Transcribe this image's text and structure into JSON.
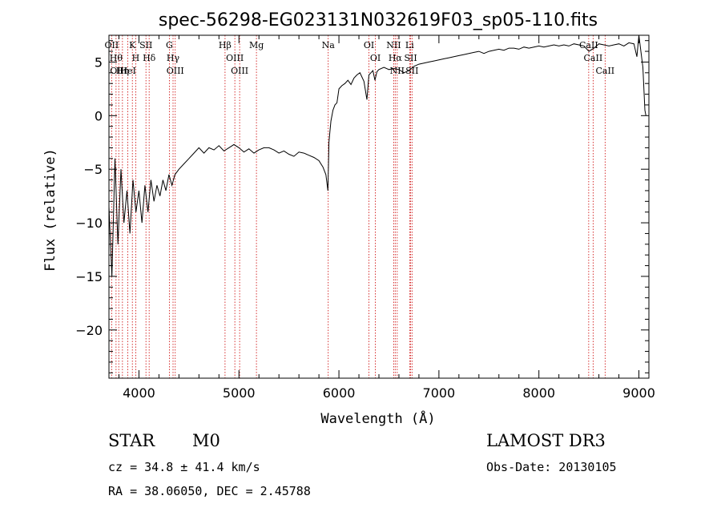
{
  "chart_data": {
    "type": "line",
    "title": "spec-56298-EG023131N032619F03_sp05-110.fits",
    "xlabel": "Wavelength (Å)",
    "ylabel": "Flux (relative)",
    "xlim": [
      3700,
      9100
    ],
    "ylim": [
      -24.5,
      7.5
    ],
    "xticks": [
      4000,
      5000,
      6000,
      7000,
      8000,
      9000
    ],
    "yticks": [
      5,
      0,
      -5,
      -10,
      -15,
      -20
    ],
    "ytick_labels": [
      "5",
      "0",
      "−5",
      "−10",
      "−15",
      "−20"
    ],
    "grid": false,
    "line_color": "#000000",
    "marker_color": "#cc0000",
    "series": [
      {
        "x": [
          3700,
          3730,
          3760,
          3790,
          3820,
          3850,
          3880,
          3910,
          3940,
          3970,
          4000,
          4030,
          4060,
          4090,
          4120,
          4150,
          4180,
          4210,
          4240,
          4270,
          4300,
          4330,
          4360,
          4400,
          4450,
          4500,
          4550,
          4600,
          4650,
          4700,
          4750,
          4800,
          4850,
          4900,
          4950,
          5000,
          5050,
          5100,
          5150,
          5200,
          5250,
          5300,
          5350,
          5400,
          5450,
          5500,
          5550,
          5600,
          5650,
          5700,
          5750,
          5800,
          5840,
          5870,
          5890,
          5900,
          5910,
          5920,
          5940,
          5960,
          5980,
          6000,
          6030,
          6060,
          6090,
          6120,
          6150,
          6180,
          6210,
          6250,
          6280,
          6300,
          6320,
          6340,
          6360,
          6380,
          6400,
          6450,
          6500,
          6550,
          6600,
          6650,
          6700,
          6750,
          6800,
          6850,
          6900,
          6950,
          7000,
          7050,
          7100,
          7150,
          7200,
          7250,
          7300,
          7350,
          7400,
          7450,
          7500,
          7550,
          7600,
          7650,
          7700,
          7750,
          7800,
          7850,
          7900,
          7950,
          8000,
          8050,
          8100,
          8150,
          8200,
          8250,
          8300,
          8350,
          8400,
          8450,
          8500,
          8550,
          8600,
          8650,
          8700,
          8750,
          8800,
          8850,
          8900,
          8950,
          8980,
          9000,
          9020,
          9040,
          9060,
          9070
        ],
        "y": [
          -8.5,
          -15,
          -4,
          -12,
          -5,
          -10,
          -7,
          -11,
          -6,
          -9,
          -7,
          -10,
          -6.5,
          -9,
          -6,
          -8,
          -6.5,
          -7.5,
          -6,
          -7,
          -5.5,
          -6.5,
          -5.5,
          -5,
          -4.5,
          -4,
          -3.5,
          -3,
          -3.5,
          -3,
          -3.2,
          -2.8,
          -3.3,
          -3,
          -2.7,
          -3,
          -3.4,
          -3.1,
          -3.5,
          -3.2,
          -3,
          -3,
          -3.2,
          -3.5,
          -3.3,
          -3.6,
          -3.8,
          -3.4,
          -3.5,
          -3.7,
          -3.9,
          -4.2,
          -4.8,
          -5.5,
          -7,
          -2.5,
          -1.5,
          -0.5,
          0.5,
          1,
          1.2,
          2.5,
          2.8,
          3,
          3.3,
          2.9,
          3.5,
          3.8,
          4,
          3.2,
          1.5,
          3.8,
          4,
          4.2,
          3.3,
          4.1,
          4.3,
          4.5,
          4.3,
          4.4,
          4.3,
          4,
          4.2,
          4.6,
          4.8,
          4.9,
          5,
          5.1,
          5.2,
          5.3,
          5.4,
          5.5,
          5.6,
          5.7,
          5.8,
          5.9,
          6,
          5.8,
          6,
          6.1,
          6.2,
          6.1,
          6.3,
          6.3,
          6.2,
          6.4,
          6.3,
          6.4,
          6.5,
          6.4,
          6.5,
          6.6,
          6.5,
          6.6,
          6.5,
          6.7,
          6.6,
          6.5,
          6,
          6.3,
          6.7,
          6.6,
          6.5,
          6.6,
          6.7,
          6.5,
          6.8,
          6.7,
          5.5,
          7.5,
          6,
          4.5,
          0.5,
          0
        ]
      }
    ],
    "spectral_lines": [
      {
        "wavelength": 3727,
        "labels": [
          "OII"
        ]
      },
      {
        "wavelength": 3771,
        "labels": [
          "Hθ"
        ]
      },
      {
        "wavelength": 3798,
        "labels": [
          "OIII"
        ]
      },
      {
        "wavelength": 3835,
        "labels": [
          "Hη"
        ]
      },
      {
        "wavelength": 3889,
        "labels": [
          "HeI"
        ]
      },
      {
        "wavelength": 3934,
        "labels": [
          "K"
        ]
      },
      {
        "wavelength": 3968,
        "labels": [
          "H"
        ]
      },
      {
        "wavelength": 4070,
        "labels": [
          "SII"
        ]
      },
      {
        "wavelength": 4102,
        "labels": [
          "Hδ"
        ]
      },
      {
        "wavelength": 4304,
        "labels": [
          "G"
        ]
      },
      {
        "wavelength": 4341,
        "labels": [
          "Hγ"
        ]
      },
      {
        "wavelength": 4363,
        "labels": [
          "OIII"
        ]
      },
      {
        "wavelength": 4861,
        "labels": [
          "Hβ"
        ]
      },
      {
        "wavelength": 4959,
        "labels": [
          "OIII"
        ]
      },
      {
        "wavelength": 5007,
        "labels": [
          "OIII"
        ]
      },
      {
        "wavelength": 5175,
        "labels": [
          "Mg"
        ]
      },
      {
        "wavelength": 5893,
        "labels": [
          "Na"
        ]
      },
      {
        "wavelength": 6300,
        "labels": [
          "OI"
        ]
      },
      {
        "wavelength": 6364,
        "labels": [
          "OI"
        ]
      },
      {
        "wavelength": 6548,
        "labels": [
          "NII"
        ]
      },
      {
        "wavelength": 6563,
        "labels": [
          "Hα"
        ]
      },
      {
        "wavelength": 6583,
        "labels": [
          "NII"
        ]
      },
      {
        "wavelength": 6707,
        "labels": [
          "Li"
        ]
      },
      {
        "wavelength": 6717,
        "labels": [
          "SII"
        ]
      },
      {
        "wavelength": 6731,
        "labels": [
          "SII"
        ]
      },
      {
        "wavelength": 8498,
        "labels": [
          "CaII"
        ]
      },
      {
        "wavelength": 8542,
        "labels": [
          "CaII"
        ]
      },
      {
        "wavelength": 8662,
        "labels": [
          "CaII"
        ]
      }
    ]
  },
  "info": {
    "class": "STAR",
    "subclass": "M0",
    "survey": "LAMOST DR3",
    "cz": "cz = 34.8 ± 41.4 km/s",
    "obs_date": "Obs-Date: 20130105",
    "radec": "RA =  38.06050, DEC =   2.45788"
  }
}
